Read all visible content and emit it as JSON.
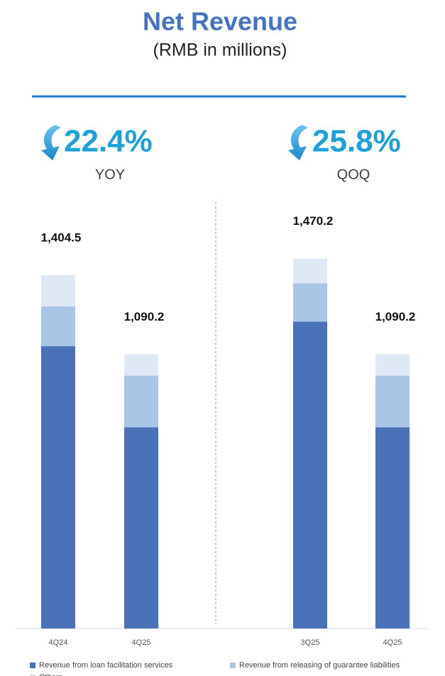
{
  "title": "Net Revenue",
  "subtitle": "(RMB in millions)",
  "chart_data": [
    {
      "type": "bar",
      "stacked": true,
      "change": "22.4%",
      "change_label": "YOY",
      "categories": [
        "4Q24",
        "4Q25"
      ],
      "ylim": [
        0,
        1500
      ],
      "series": [
        {
          "name": "Revenue from loan facilitation services",
          "color": "#4a72b8",
          "values": [
            1122,
            800
          ]
        },
        {
          "name": "Revenue from releasing of guarantee liabilities",
          "color": "#a9c6e6",
          "values": [
            158,
            205
          ]
        },
        {
          "name": "Others",
          "color": "#dfe9f5",
          "values": [
            124.5,
            85.2
          ]
        }
      ],
      "totals": {
        "values": [
          1404.5,
          1090.2
        ],
        "value_labels": [
          "1,404.5",
          "1,090.2"
        ]
      }
    },
    {
      "type": "bar",
      "stacked": true,
      "change": "25.8%",
      "change_label": "QOQ",
      "categories": [
        "3Q25",
        "4Q25"
      ],
      "ylim": [
        0,
        1500
      ],
      "series": [
        {
          "color": "#4a72b8",
          "values": [
            1220,
            800
          ]
        },
        {
          "color": "#a9c6e6",
          "values": [
            152,
            205
          ]
        },
        {
          "color": "#dfe9f5",
          "values": [
            98.2,
            85.2
          ]
        }
      ],
      "totals": {
        "values": [
          1470.2,
          1090.2
        ],
        "value_labels": [
          "1,470.2",
          "1,090.2"
        ]
      }
    }
  ]
}
